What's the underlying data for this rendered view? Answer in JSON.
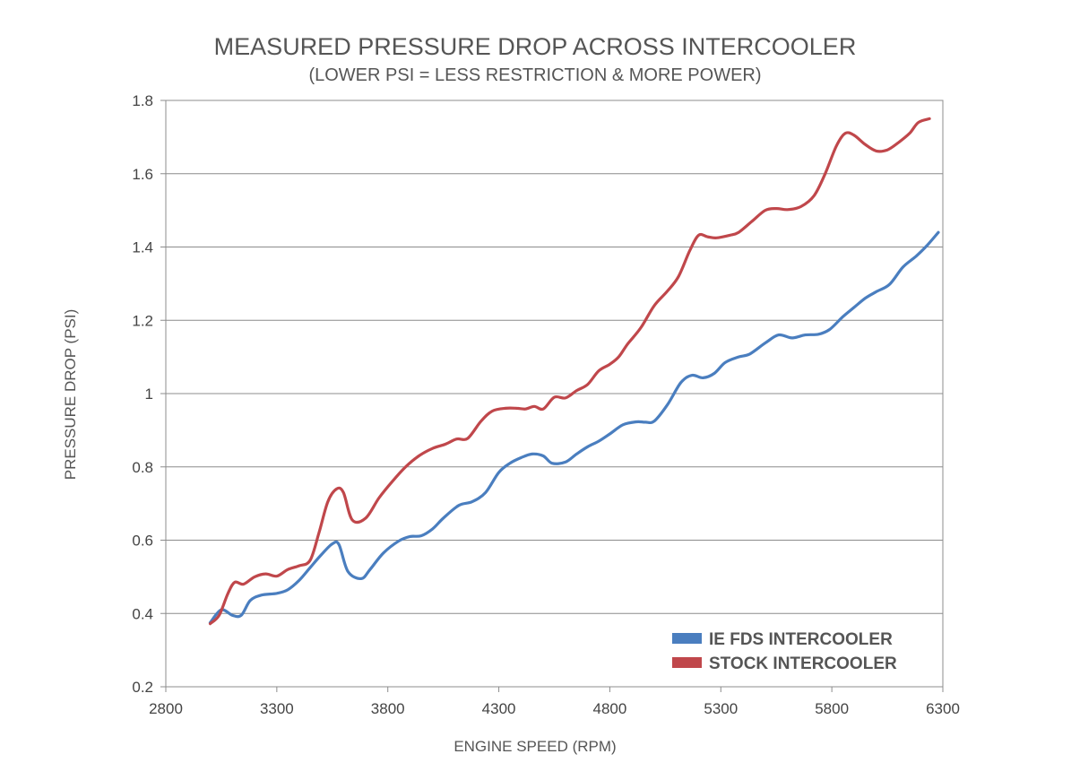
{
  "chart_data": {
    "type": "line",
    "title": "MEASURED PRESSURE DROP ACROSS INTERCOOLER",
    "subtitle": "(LOWER PSI = LESS RESTRICTION & MORE POWER)",
    "xlabel": "ENGINE SPEED (RPM)",
    "ylabel": "PRESSURE DROP (PSI)",
    "xlim": [
      2800,
      6300
    ],
    "ylim": [
      0.2,
      1.8
    ],
    "x_ticks": [
      "2800",
      "3300",
      "3800",
      "4300",
      "4800",
      "5300",
      "5800",
      "6300"
    ],
    "y_ticks": [
      "0.2",
      "0.4",
      "0.6",
      "0.8",
      "1",
      "1.2",
      "1.4",
      "1.6",
      "1.8"
    ],
    "grid": "horizontal",
    "legend_position": "bottom-right",
    "series": [
      {
        "name": "IE FDS INTERCOOLER",
        "color": "#4a7ebf",
        "points": [
          [
            3000,
            0.375
          ],
          [
            3050,
            0.41
          ],
          [
            3100,
            0.395
          ],
          [
            3140,
            0.395
          ],
          [
            3180,
            0.435
          ],
          [
            3230,
            0.45
          ],
          [
            3300,
            0.455
          ],
          [
            3350,
            0.465
          ],
          [
            3400,
            0.49
          ],
          [
            3450,
            0.525
          ],
          [
            3500,
            0.56
          ],
          [
            3550,
            0.59
          ],
          [
            3580,
            0.588
          ],
          [
            3620,
            0.515
          ],
          [
            3680,
            0.495
          ],
          [
            3720,
            0.52
          ],
          [
            3780,
            0.565
          ],
          [
            3850,
            0.598
          ],
          [
            3900,
            0.61
          ],
          [
            3950,
            0.612
          ],
          [
            4000,
            0.63
          ],
          [
            4050,
            0.66
          ],
          [
            4120,
            0.695
          ],
          [
            4180,
            0.705
          ],
          [
            4240,
            0.73
          ],
          [
            4300,
            0.785
          ],
          [
            4350,
            0.81
          ],
          [
            4400,
            0.825
          ],
          [
            4450,
            0.835
          ],
          [
            4500,
            0.83
          ],
          [
            4540,
            0.81
          ],
          [
            4600,
            0.813
          ],
          [
            4650,
            0.835
          ],
          [
            4700,
            0.855
          ],
          [
            4750,
            0.87
          ],
          [
            4800,
            0.89
          ],
          [
            4860,
            0.915
          ],
          [
            4920,
            0.923
          ],
          [
            4960,
            0.922
          ],
          [
            5000,
            0.925
          ],
          [
            5060,
            0.97
          ],
          [
            5120,
            1.03
          ],
          [
            5170,
            1.05
          ],
          [
            5220,
            1.043
          ],
          [
            5270,
            1.055
          ],
          [
            5320,
            1.085
          ],
          [
            5380,
            1.1
          ],
          [
            5430,
            1.108
          ],
          [
            5500,
            1.138
          ],
          [
            5560,
            1.16
          ],
          [
            5620,
            1.152
          ],
          [
            5680,
            1.16
          ],
          [
            5740,
            1.162
          ],
          [
            5790,
            1.175
          ],
          [
            5850,
            1.21
          ],
          [
            5900,
            1.235
          ],
          [
            5950,
            1.26
          ],
          [
            6000,
            1.278
          ],
          [
            6060,
            1.298
          ],
          [
            6120,
            1.345
          ],
          [
            6180,
            1.375
          ],
          [
            6230,
            1.405
          ],
          [
            6280,
            1.44
          ]
        ]
      },
      {
        "name": "STOCK INTERCOOLER",
        "color": "#c0474b",
        "points": [
          [
            3000,
            0.372
          ],
          [
            3040,
            0.395
          ],
          [
            3080,
            0.455
          ],
          [
            3110,
            0.485
          ],
          [
            3150,
            0.48
          ],
          [
            3200,
            0.5
          ],
          [
            3250,
            0.508
          ],
          [
            3300,
            0.502
          ],
          [
            3350,
            0.52
          ],
          [
            3400,
            0.53
          ],
          [
            3450,
            0.545
          ],
          [
            3490,
            0.62
          ],
          [
            3530,
            0.705
          ],
          [
            3570,
            0.74
          ],
          [
            3600,
            0.73
          ],
          [
            3640,
            0.655
          ],
          [
            3700,
            0.66
          ],
          [
            3760,
            0.715
          ],
          [
            3820,
            0.76
          ],
          [
            3880,
            0.8
          ],
          [
            3940,
            0.83
          ],
          [
            4000,
            0.85
          ],
          [
            4060,
            0.862
          ],
          [
            4110,
            0.876
          ],
          [
            4160,
            0.878
          ],
          [
            4220,
            0.925
          ],
          [
            4270,
            0.952
          ],
          [
            4330,
            0.96
          ],
          [
            4380,
            0.96
          ],
          [
            4420,
            0.958
          ],
          [
            4460,
            0.965
          ],
          [
            4500,
            0.958
          ],
          [
            4550,
            0.99
          ],
          [
            4600,
            0.988
          ],
          [
            4650,
            1.008
          ],
          [
            4700,
            1.025
          ],
          [
            4750,
            1.062
          ],
          [
            4800,
            1.08
          ],
          [
            4840,
            1.1
          ],
          [
            4880,
            1.135
          ],
          [
            4940,
            1.18
          ],
          [
            5000,
            1.24
          ],
          [
            5060,
            1.28
          ],
          [
            5110,
            1.32
          ],
          [
            5160,
            1.39
          ],
          [
            5200,
            1.432
          ],
          [
            5240,
            1.428
          ],
          [
            5280,
            1.425
          ],
          [
            5340,
            1.432
          ],
          [
            5380,
            1.44
          ],
          [
            5440,
            1.47
          ],
          [
            5500,
            1.5
          ],
          [
            5550,
            1.505
          ],
          [
            5600,
            1.502
          ],
          [
            5660,
            1.51
          ],
          [
            5720,
            1.54
          ],
          [
            5770,
            1.6
          ],
          [
            5820,
            1.675
          ],
          [
            5860,
            1.71
          ],
          [
            5900,
            1.705
          ],
          [
            5950,
            1.68
          ],
          [
            6000,
            1.662
          ],
          [
            6050,
            1.665
          ],
          [
            6100,
            1.685
          ],
          [
            6150,
            1.71
          ],
          [
            6190,
            1.74
          ],
          [
            6240,
            1.75
          ]
        ]
      }
    ]
  }
}
